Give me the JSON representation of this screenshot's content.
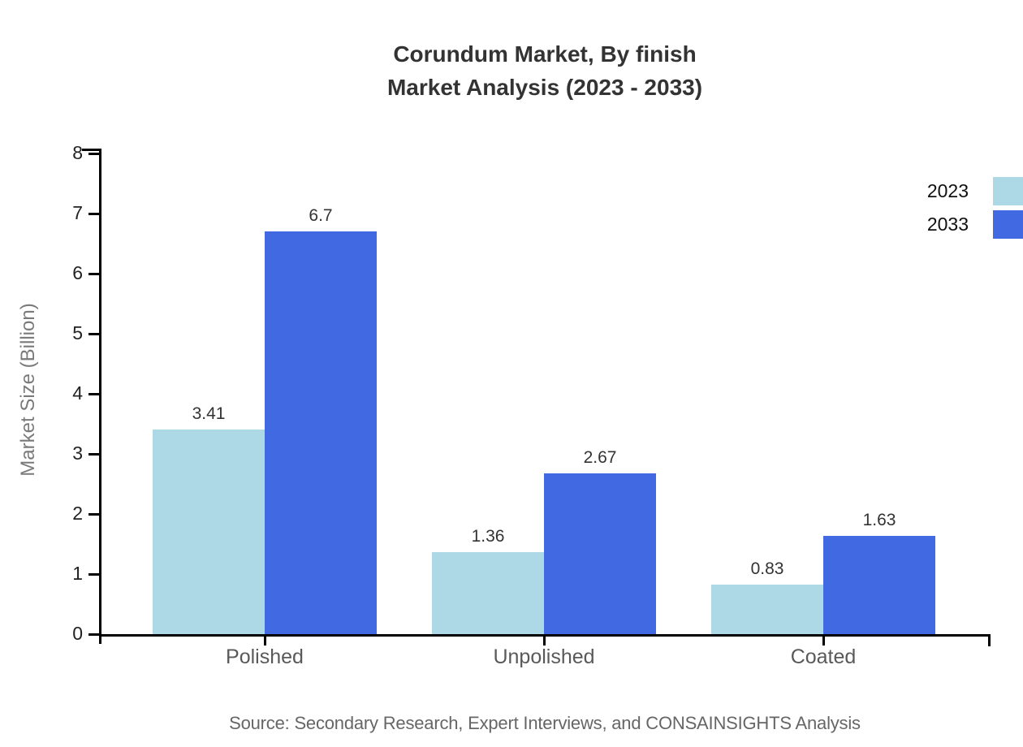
{
  "title": {
    "line1": "Corundum Market, By finish",
    "line2": "Market Analysis (2023 - 2033)"
  },
  "source": "Source: Secondary Research, Expert Interviews, and CONSAINSIGHTS Analysis",
  "chart_data": {
    "type": "bar",
    "title": "Corundum Market, By finish Market Analysis (2023 - 2033)",
    "categories": [
      "Polished",
      "Unpolished",
      "Coated"
    ],
    "series": [
      {
        "name": "2023",
        "color": "#ADD8E6",
        "values": [
          3.41,
          1.36,
          0.83
        ],
        "labels": [
          "3.41",
          "1.36",
          "0.83"
        ]
      },
      {
        "name": "2033",
        "color": "#4169E1",
        "values": [
          6.7,
          2.67,
          1.63
        ],
        "labels": [
          "6.7",
          "2.67",
          "1.63"
        ]
      }
    ],
    "xlabel": "",
    "ylabel": "Market Size (Billion)",
    "ylim": [
      0,
      8
    ],
    "yticks": [
      0,
      1,
      2,
      3,
      4,
      5,
      6,
      7,
      8
    ],
    "grid": false,
    "legend_position": "top-right",
    "bar_value_labels": true
  },
  "colors": {
    "background": "#ffffff",
    "axis": "#000000",
    "title_text": "#333333",
    "y_tick_label": "#222222",
    "category_label": "#595959",
    "value_label": "#333333",
    "y_axis_title": "#7a7a7a",
    "legend_label": "#111111",
    "source_text": "#666666"
  }
}
